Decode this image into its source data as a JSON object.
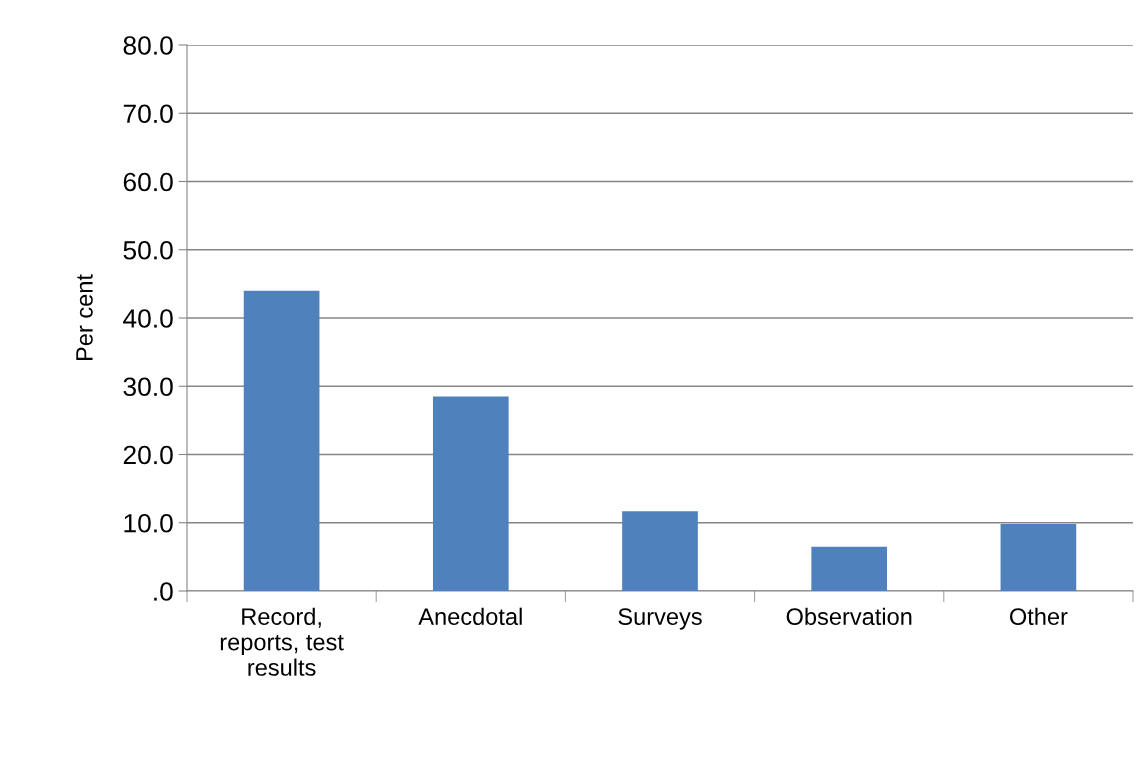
{
  "chart_data": {
    "type": "bar",
    "ylabel": "Per cent",
    "categories": [
      "Record,\nreports, test\nresults",
      "Anecdotal",
      "Surveys",
      "Observation",
      "Other"
    ],
    "values": [
      44.0,
      28.5,
      11.7,
      6.5,
      9.8
    ],
    "color": "#4f81bd",
    "ylim": [
      0,
      80
    ],
    "yticks": [
      {
        "value": 0,
        "label": ".0"
      },
      {
        "value": 10,
        "label": "10.0"
      },
      {
        "value": 20,
        "label": "20.0"
      },
      {
        "value": 30,
        "label": "30.0"
      },
      {
        "value": 40,
        "label": "40.0"
      },
      {
        "value": 50,
        "label": "50.0"
      },
      {
        "value": 60,
        "label": "60.0"
      },
      {
        "value": 70,
        "label": "70.0"
      },
      {
        "value": 80,
        "label": "80.0"
      }
    ],
    "grid": "y"
  }
}
